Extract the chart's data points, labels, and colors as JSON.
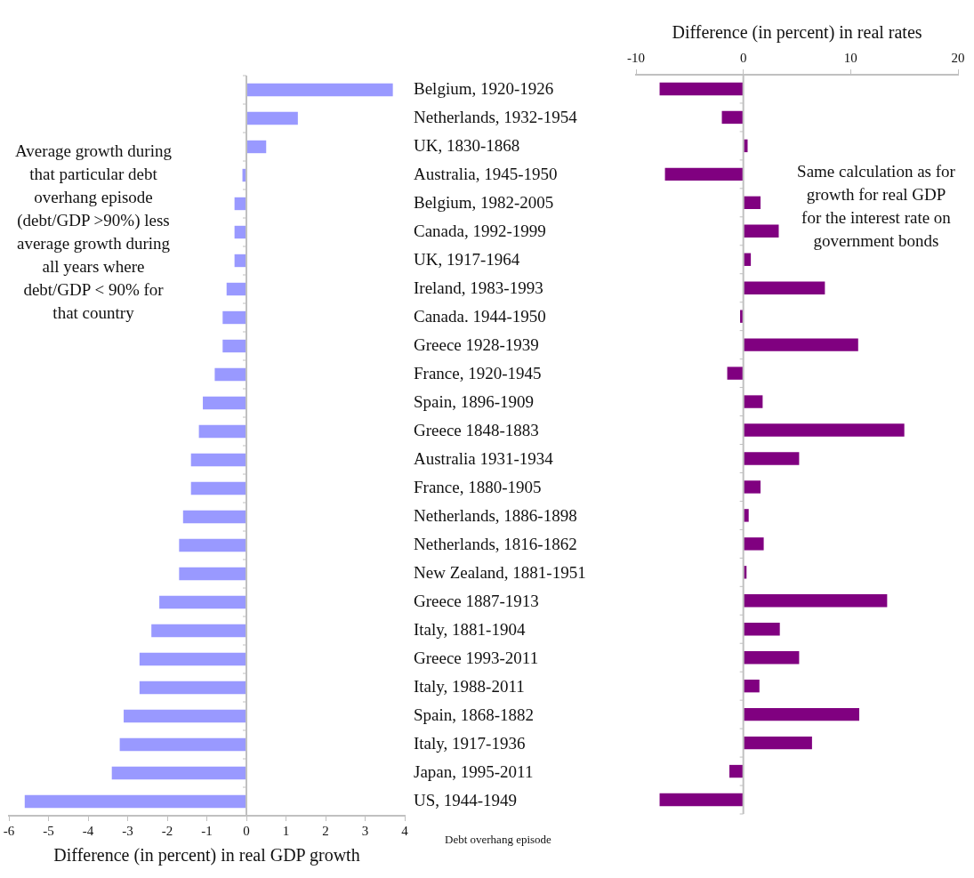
{
  "chart_data": [
    {
      "type": "bar",
      "orientation": "horizontal",
      "xlabel": "Difference (in percent) in real GDP growth",
      "ylabel": "Debt overhang episode",
      "categories": [
        "Belgium, 1920-1926",
        "Netherlands, 1932-1954",
        "UK, 1830-1868",
        "Australia, 1945-1950",
        "Belgium, 1982-2005",
        "Canada, 1992-1999",
        "UK, 1917-1964",
        "Ireland, 1983-1993",
        "Canada. 1944-1950",
        "Greece 1928-1939",
        "France, 1920-1945",
        "Spain, 1896-1909",
        "Greece 1848-1883",
        "Australia 1931-1934",
        "France, 1880-1905",
        "Netherlands, 1886-1898",
        "Netherlands, 1816-1862",
        "New Zealand, 1881-1951",
        "Greece 1887-1913",
        "Italy, 1881-1904",
        "Greece 1993-2011",
        "Italy, 1988-2011",
        "Spain, 1868-1882",
        "Italy, 1917-1936",
        "Japan, 1995-2011",
        "US, 1944-1949"
      ],
      "values": [
        3.7,
        1.3,
        0.5,
        -0.1,
        -0.3,
        -0.3,
        -0.3,
        -0.5,
        -0.6,
        -0.6,
        -0.8,
        -1.1,
        -1.2,
        -1.4,
        -1.4,
        -1.6,
        -1.7,
        -1.7,
        -2.2,
        -2.4,
        -2.7,
        -2.7,
        -3.1,
        -3.2,
        -3.4,
        -5.6
      ],
      "color": "#9999ff",
      "xlim": [
        -6,
        4
      ],
      "xticks": [
        -6,
        -5,
        -4,
        -3,
        -2,
        -1,
        0,
        1,
        2,
        3,
        4
      ],
      "annotations": [
        "Average growth during that particular debt overhang episode (debt/GDP >90%) less average growth during all years where debt/GDP < 90% for that country"
      ]
    },
    {
      "type": "bar",
      "orientation": "horizontal",
      "xlabel": "Difference (in percent) in real rates",
      "tick_labels": "x",
      "categories": [
        null,
        null,
        null,
        null,
        null,
        null,
        null,
        null,
        null,
        null,
        null,
        null,
        null,
        null,
        null,
        null,
        null,
        null,
        null,
        null,
        null,
        null,
        null,
        null,
        null,
        null
      ],
      "values": [
        -7.8,
        -2.0,
        0.4,
        -7.3,
        1.6,
        3.3,
        0.7,
        7.6,
        -0.3,
        10.7,
        -1.5,
        1.8,
        15.0,
        5.2,
        1.6,
        0.5,
        1.9,
        0.3,
        13.4,
        3.4,
        5.2,
        1.5,
        10.8,
        6.4,
        -1.3,
        -7.8
      ],
      "color": "#800080",
      "xlim": [
        -10,
        20
      ],
      "xticks": [
        -10,
        0,
        10,
        20
      ],
      "annotations": [
        "Same calculation as for growth for real GDP for the interest rate on government bonds"
      ]
    }
  ]
}
